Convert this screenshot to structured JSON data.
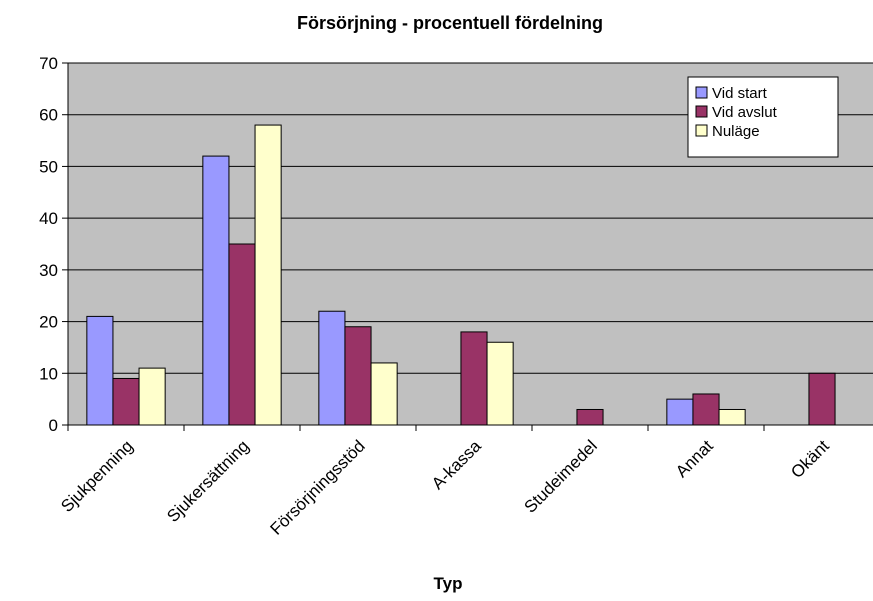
{
  "chart_data": {
    "type": "bar",
    "title": "Försörjning - procentuell fördelning",
    "xlabel": "Typ",
    "ylabel": "",
    "ylim": [
      0,
      70
    ],
    "yticks": [
      0,
      10,
      20,
      30,
      40,
      50,
      60,
      70
    ],
    "grid": true,
    "legend_position": "top-right",
    "categories": [
      "Sjukpenning",
      "Sjukersättning",
      "Försörjningsstöd",
      "A-kassa",
      "Studeimedel",
      "Annat",
      "Okänt"
    ],
    "series": [
      {
        "name": "Vid start",
        "color": "#9999ff",
        "values": [
          21,
          52,
          22,
          0,
          0,
          5,
          0
        ]
      },
      {
        "name": "Vid avslut",
        "color": "#993366",
        "values": [
          9,
          35,
          19,
          18,
          3,
          6,
          10
        ]
      },
      {
        "name": "Nuläge",
        "color": "#ffffcc",
        "values": [
          11,
          58,
          12,
          16,
          0,
          3,
          0
        ]
      }
    ],
    "plot_background": "#c0c0c0"
  }
}
